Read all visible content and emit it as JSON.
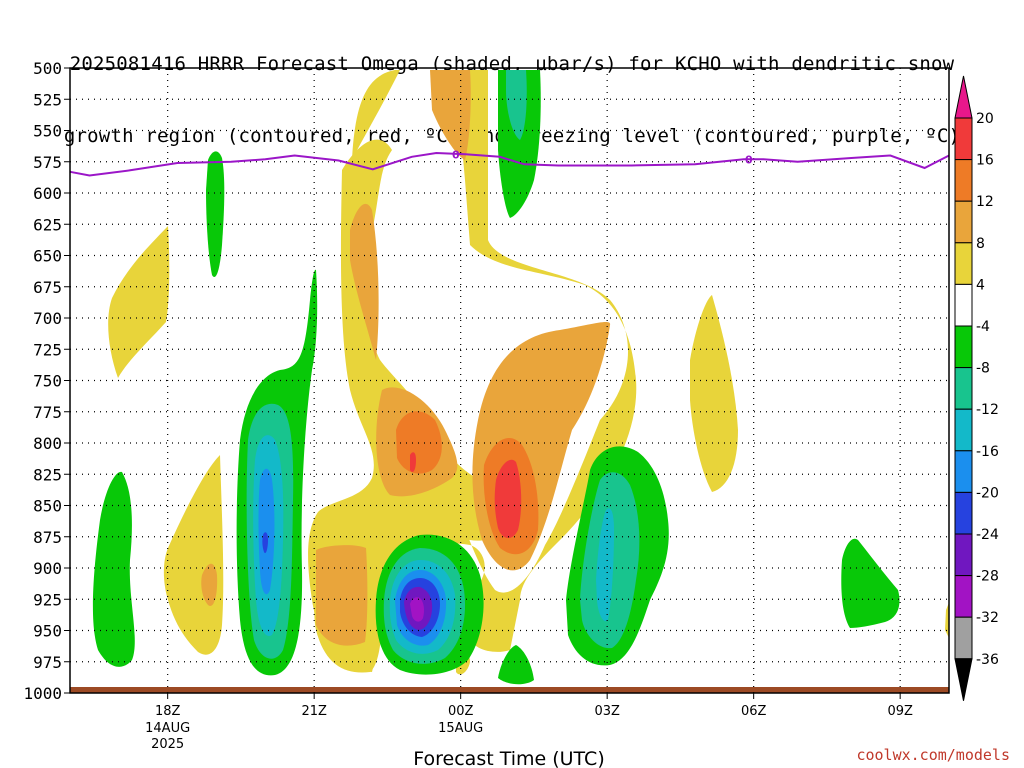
{
  "title_lines": [
    "2025081416 HRRR Forecast Omega (shaded, µbar/s) for KCHO with dendritic snow",
    "growth region (contoured, red, ºC) and freezing level (contoured, purple, ºC)"
  ],
  "credit": "coolwx.com/models",
  "chart_data": {
    "type": "contour",
    "title": "2025081416 HRRR Forecast Omega (shaded, µbar/s) for KCHO with dendritic snow growth region (contoured, red, ºC) and freezing level (contoured, purple, ºC)",
    "xlabel": "Forecast Time (UTC)",
    "ylabel": "",
    "x_ticks": [
      {
        "label": "18Z",
        "sub": [
          "14AUG",
          "2025"
        ],
        "hour": 18
      },
      {
        "label": "21Z",
        "sub": [],
        "hour": 21
      },
      {
        "label": "00Z",
        "sub": [
          "15AUG"
        ],
        "hour": 24
      },
      {
        "label": "03Z",
        "sub": [],
        "hour": 27
      },
      {
        "label": "06Z",
        "sub": [],
        "hour": 30
      },
      {
        "label": "09Z",
        "sub": [],
        "hour": 33
      }
    ],
    "xlim_hours": [
      16,
      34
    ],
    "y_ticks": [
      "500",
      "525",
      "550",
      "575",
      "600",
      "625",
      "650",
      "675",
      "700",
      "725",
      "750",
      "775",
      "800",
      "825",
      "850",
      "875",
      "900",
      "925",
      "950",
      "975",
      "1000"
    ],
    "ylim_hpa": [
      500,
      1000
    ],
    "grid": true,
    "colorbar": {
      "labels": [
        "20",
        "16",
        "12",
        "8",
        "4",
        "-4",
        "-8",
        "-12",
        "-16",
        "-20",
        "-24",
        "-28",
        "-32",
        "-36"
      ],
      "bins": [
        {
          "range": ">20",
          "color": "#e8178b"
        },
        {
          "range": "16 to 20",
          "color": "#f03a3a"
        },
        {
          "range": "12 to 16",
          "color": "#ee7b26"
        },
        {
          "range": "8 to 12",
          "color": "#e9a53b"
        },
        {
          "range": "4 to 8",
          "color": "#e8d43a"
        },
        {
          "range": "-4 to 4",
          "color": "#ffffff"
        },
        {
          "range": "-8 to -4",
          "color": "#08c808"
        },
        {
          "range": "-12 to -8",
          "color": "#18c48e"
        },
        {
          "range": "-16 to -12",
          "color": "#13b9c9"
        },
        {
          "range": "-20 to -16",
          "color": "#1b8fee"
        },
        {
          "range": "-24 to -20",
          "color": "#2642df"
        },
        {
          "range": "-28 to -24",
          "color": "#7017c0"
        },
        {
          "range": "-32 to -28",
          "color": "#a213c4"
        },
        {
          "range": "-36 to -32",
          "color": "#a0a0a0"
        },
        {
          "range": "<-36",
          "color": "#000000"
        }
      ]
    },
    "freezing_level": {
      "label": "0",
      "color": "#9b16c8",
      "points": [
        [
          16,
          583
        ],
        [
          16.4,
          586
        ],
        [
          17.2,
          582
        ],
        [
          18.2,
          576
        ],
        [
          19.3,
          575
        ],
        [
          20,
          573
        ],
        [
          20.6,
          570
        ],
        [
          21.5,
          574
        ],
        [
          22.2,
          581
        ],
        [
          23,
          571
        ],
        [
          23.5,
          568
        ],
        [
          24.1,
          569
        ],
        [
          24.8,
          571
        ],
        [
          25.3,
          577
        ],
        [
          26,
          578
        ],
        [
          27.5,
          578
        ],
        [
          28.8,
          577
        ],
        [
          29.8,
          573
        ],
        [
          30.2,
          573
        ],
        [
          30.9,
          575
        ],
        [
          32,
          572
        ],
        [
          32.8,
          570
        ],
        [
          33.5,
          580
        ],
        [
          34,
          570
        ]
      ]
    }
  }
}
